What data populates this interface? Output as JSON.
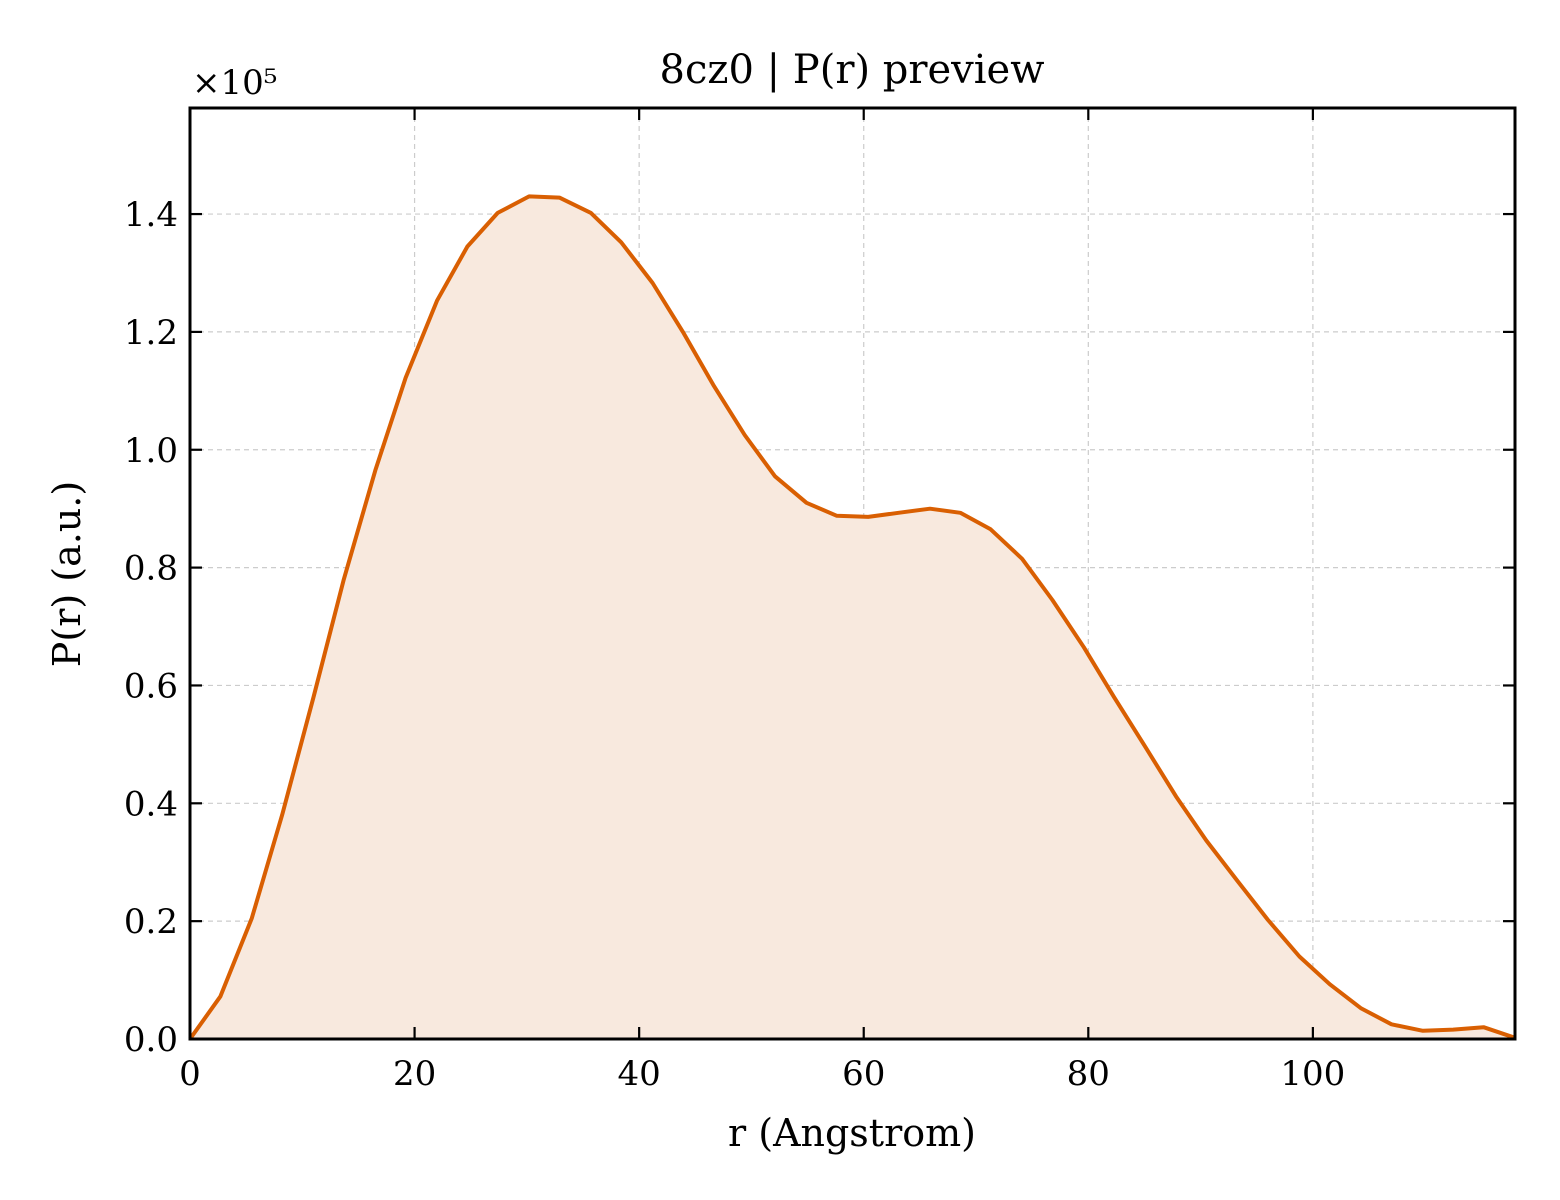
{
  "chart_data": {
    "type": "area",
    "title": "8cz0 | P(r) preview",
    "xlabel": "r (Angstrom)",
    "ylabel": "P(r) (a.u.)",
    "y_scale_label": "×10⁵",
    "y_scale_factor": 100000,
    "xlim": [
      0,
      118
    ],
    "ylim": [
      0,
      1.58
    ],
    "grid": true,
    "x_ticks": [
      0,
      20,
      40,
      60,
      80,
      100
    ],
    "x_tick_labels": [
      "0",
      "20",
      "40",
      "60",
      "80",
      "100"
    ],
    "y_ticks": [
      0,
      0.2,
      0.4,
      0.6,
      0.8,
      1.0,
      1.2,
      1.4
    ],
    "y_tick_labels": [
      "0.0",
      "0.2",
      "0.4",
      "0.6",
      "0.8",
      "1.0",
      "1.2",
      "1.4"
    ],
    "line_color": "#d95f02",
    "fill_color": "#f8e9de",
    "series": [
      {
        "x": [
          0,
          2.7,
          5.5,
          8.2,
          11.0,
          13.7,
          16.5,
          19.2,
          22.0,
          24.7,
          27.4,
          30.2,
          32.9,
          35.7,
          38.4,
          41.2,
          43.9,
          46.6,
          49.4,
          52.1,
          54.9,
          57.6,
          60.4,
          63.1,
          65.9,
          68.6,
          71.3,
          74.1,
          76.8,
          79.6,
          82.3,
          85.1,
          87.8,
          90.5,
          93.3,
          96.0,
          98.8,
          101.5,
          104.3,
          107.0,
          109.8,
          112.5,
          115.2,
          118.0
        ],
        "y": [
          0.0,
          0.072,
          0.205,
          0.38,
          0.58,
          0.78,
          0.965,
          1.122,
          1.253,
          1.345,
          1.402,
          1.43,
          1.428,
          1.402,
          1.352,
          1.283,
          1.2,
          1.11,
          1.025,
          0.955,
          0.91,
          0.888,
          0.886,
          0.893,
          0.9,
          0.893,
          0.865,
          0.815,
          0.745,
          0.665,
          0.58,
          0.495,
          0.412,
          0.337,
          0.268,
          0.202,
          0.14,
          0.093,
          0.052,
          0.025,
          0.014,
          0.016,
          0.02,
          0.002
        ]
      }
    ]
  }
}
